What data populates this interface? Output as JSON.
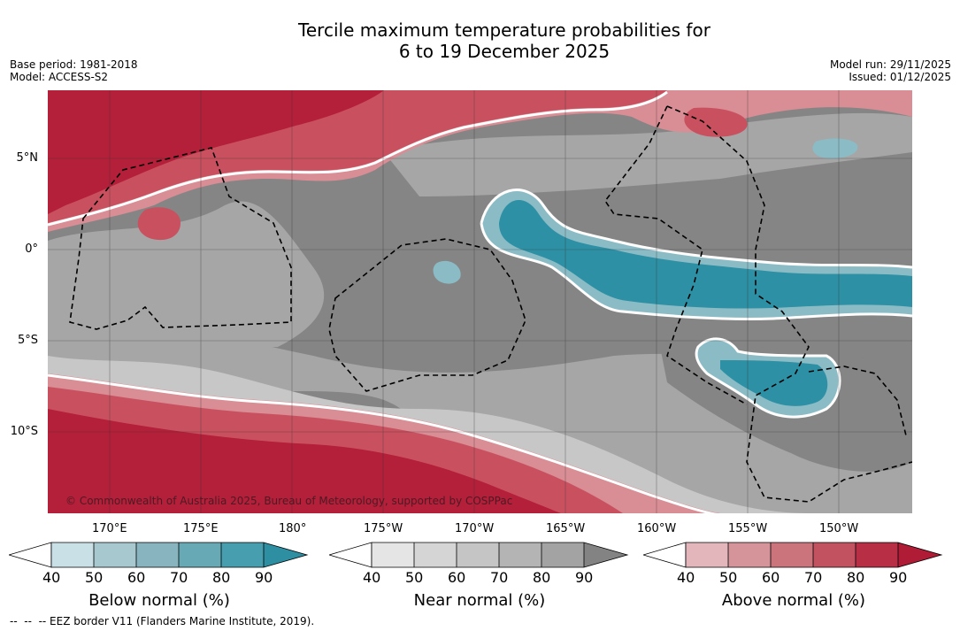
{
  "title": {
    "line1": "Tercile maximum temperature probabilities for",
    "line2": "6 to 19 December 2025"
  },
  "meta": {
    "base_period": "Base period: 1981-2018",
    "model": "Model: ACCESS-S2",
    "model_run": "Model run: 29/11/2025",
    "issued": "Issued: 01/12/2025"
  },
  "map": {
    "lat_labels": [
      "5°N",
      "0°",
      "5°S",
      "10°S"
    ],
    "lon_labels": [
      "170°E",
      "175°E",
      "180°",
      "175°W",
      "170°W",
      "165°W",
      "160°W",
      "155°W",
      "150°W"
    ],
    "copyright": "© Commonwealth of Australia 2025, Bureau of Meteorology, supported by COSPPac",
    "colors": {
      "above_strong": "#b41f3a",
      "above_mid": "#c9515f",
      "above_light": "#d98d95",
      "near_dark": "#858585",
      "near_mid": "#a6a6a6",
      "near_light": "#c7c7c7",
      "below_strong": "#2e90a4",
      "below_light": "#8bbcc6"
    }
  },
  "legend": {
    "ticks": [
      "40",
      "50",
      "60",
      "70",
      "80",
      "90"
    ],
    "below": {
      "title": "Below normal (%)",
      "colors": [
        "#c9e1e6",
        "#a7c8ce",
        "#87b4bf",
        "#68a9b6",
        "#479eaf",
        "#2e8fa3"
      ]
    },
    "near": {
      "title": "Near normal (%)",
      "colors": [
        "#e5e5e5",
        "#d5d5d5",
        "#c5c5c5",
        "#b4b4b4",
        "#a3a3a3",
        "#838383"
      ]
    },
    "above": {
      "title": "Above normal (%)",
      "colors": [
        "#e2b6bb",
        "#d5939a",
        "#cb747c",
        "#c2525f",
        "#b82e45",
        "#b01c35"
      ]
    }
  },
  "footer": {
    "eez": "--  --  -- EEZ border V11 (Flanders Marine Institute, 2019)."
  }
}
